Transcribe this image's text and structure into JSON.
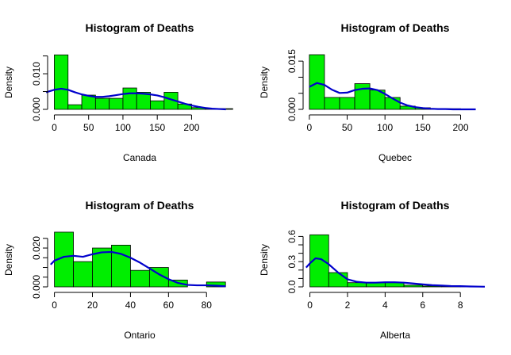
{
  "chart_data": [
    {
      "type": "bar",
      "title": "Histogram of Deaths",
      "xlabel": "Canada",
      "ylabel": "Density",
      "xlim": [
        -4,
        255
      ],
      "ylim": [
        0,
        0.0158
      ],
      "xticks": [
        "0",
        "50",
        "100",
        "150",
        "200"
      ],
      "yticks": [
        "0.000",
        "0.010"
      ],
      "bin_edges": [
        0,
        20,
        40,
        60,
        80,
        100,
        120,
        140,
        160,
        180,
        200,
        220,
        240,
        260
      ],
      "values": [
        0.0153,
        0.0013,
        0.004,
        0.0031,
        0.0031,
        0.006,
        0.0048,
        0.0024,
        0.0048,
        0.0015,
        0.0005,
        0.0002,
        0.0002
      ],
      "density_line": {
        "color": "#0000cc",
        "x": [
          -12,
          0,
          10,
          20,
          30,
          40,
          50,
          60,
          70,
          80,
          90,
          100,
          110,
          120,
          130,
          140,
          150,
          160,
          170,
          180,
          190,
          200,
          210,
          220,
          230,
          240,
          250
        ],
        "y": [
          0.0048,
          0.0055,
          0.0058,
          0.0055,
          0.0048,
          0.0042,
          0.0038,
          0.0035,
          0.0035,
          0.0037,
          0.004,
          0.0043,
          0.0045,
          0.0045,
          0.0044,
          0.0042,
          0.0039,
          0.0034,
          0.0028,
          0.0022,
          0.0016,
          0.0011,
          0.0007,
          0.0004,
          0.0002,
          0.0001,
          0.0
        ]
      },
      "bar_color": "#00ee00",
      "grid": false
    },
    {
      "type": "bar",
      "title": "Histogram of Deaths",
      "xlabel": "Quebec",
      "ylabel": "Density",
      "xlim": [
        -3,
        232
      ],
      "ylim": [
        0,
        0.0175
      ],
      "xticks": [
        "0",
        "50",
        "100",
        "150",
        "200"
      ],
      "yticks": [
        "0.000",
        "0.015"
      ],
      "bin_edges": [
        0,
        20,
        40,
        60,
        80,
        100,
        120,
        140,
        160,
        180,
        200
      ],
      "values": [
        0.017,
        0.0037,
        0.0037,
        0.008,
        0.006,
        0.0037,
        0.001,
        0.0005,
        0.0002,
        0.0002
      ],
      "density_line": {
        "color": "#0000cc",
        "x": [
          0,
          10,
          20,
          30,
          40,
          50,
          60,
          70,
          80,
          90,
          100,
          110,
          120,
          130,
          140,
          150,
          160,
          170,
          180,
          190,
          200,
          210,
          220
        ],
        "y": [
          0.007,
          0.0082,
          0.0076,
          0.0061,
          0.0051,
          0.0052,
          0.006,
          0.0064,
          0.0065,
          0.006,
          0.0048,
          0.0034,
          0.0021,
          0.0012,
          0.0007,
          0.0004,
          0.0002,
          0.0001,
          0.0001,
          0.0,
          0.0,
          0.0,
          0.0
        ]
      },
      "bar_color": "#00ee00",
      "grid": false
    },
    {
      "type": "bar",
      "title": "Histogram of Deaths",
      "xlabel": "Ontario",
      "ylabel": "Density",
      "xlim": [
        -1.5,
        92
      ],
      "ylim": [
        0,
        0.029
      ],
      "xticks": [
        "0",
        "20",
        "40",
        "60",
        "80"
      ],
      "yticks": [
        "0.000",
        "0.020"
      ],
      "bin_edges": [
        0,
        10,
        20,
        30,
        40,
        50,
        60,
        70,
        80,
        90
      ],
      "values": [
        0.0282,
        0.013,
        0.02,
        0.0215,
        0.0085,
        0.01,
        0.0035,
        0.0,
        0.0025
      ],
      "density_line": {
        "color": "#0000cc",
        "x": [
          -2,
          0,
          5,
          10,
          15,
          20,
          25,
          30,
          35,
          40,
          45,
          50,
          55,
          60,
          65,
          70,
          75,
          80,
          85,
          90
        ],
        "y": [
          0.0115,
          0.0135,
          0.0155,
          0.016,
          0.0155,
          0.0168,
          0.0178,
          0.018,
          0.017,
          0.015,
          0.0125,
          0.0095,
          0.0065,
          0.004,
          0.002,
          0.001,
          0.0008,
          0.0008,
          0.0006,
          0.0003
        ]
      },
      "bar_color": "#00ee00",
      "grid": false
    },
    {
      "type": "bar",
      "title": "Histogram of Deaths",
      "xlabel": "Alberta",
      "ylabel": "Density",
      "xlim": [
        -0.15,
        9.3
      ],
      "ylim": [
        0,
        0.67
      ],
      "xticks": [
        "0",
        "2",
        "4",
        "6",
        "8"
      ],
      "yticks": [
        "0.0",
        "0.3",
        "0.6"
      ],
      "bin_edges": [
        0,
        1,
        2,
        3,
        4,
        5,
        6,
        7,
        8,
        9
      ],
      "values": [
        0.62,
        0.17,
        0.05,
        0.05,
        0.05,
        0.02,
        0.01,
        0.005,
        0.005
      ],
      "density_line": {
        "color": "#0000cc",
        "x": [
          -0.2,
          0,
          0.3,
          0.6,
          1.0,
          1.5,
          2.0,
          2.5,
          3.0,
          3.5,
          4.0,
          4.5,
          5.0,
          5.5,
          6.0,
          6.5,
          7.0,
          7.5,
          8.0,
          8.5,
          9.0,
          9.3
        ],
        "y": [
          0.23,
          0.28,
          0.34,
          0.33,
          0.27,
          0.17,
          0.09,
          0.06,
          0.05,
          0.05,
          0.055,
          0.055,
          0.05,
          0.04,
          0.03,
          0.02,
          0.015,
          0.01,
          0.008,
          0.005,
          0.003,
          0.002
        ]
      },
      "bar_color": "#00ee00",
      "grid": false
    }
  ]
}
